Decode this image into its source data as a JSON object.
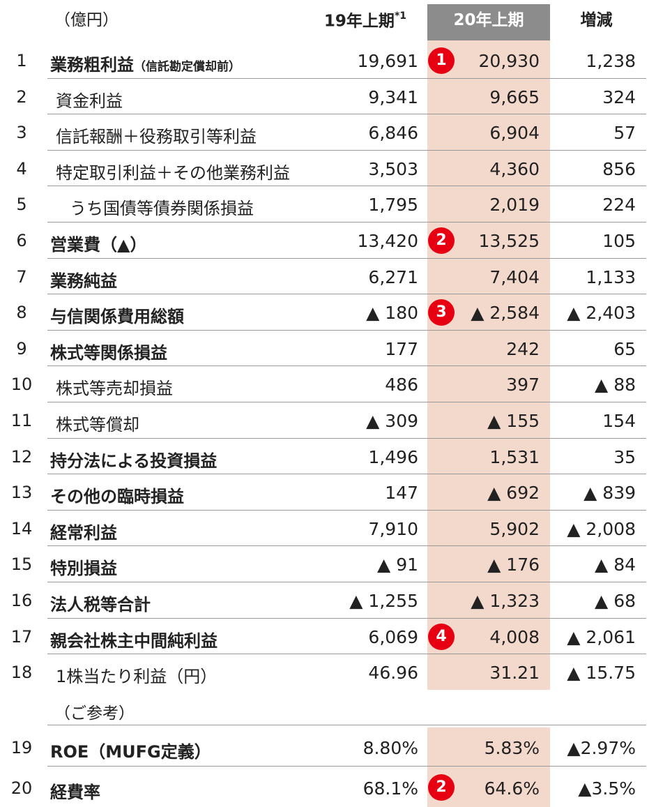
{
  "header": {
    "unit": "（億円）",
    "col1": "19年上期",
    "col1_sup": "*1",
    "col2": "20年上期",
    "col3": "増減"
  },
  "rows": [
    {
      "no": "1",
      "label": "業務粗利益",
      "sub": "（信託勘定償却前）",
      "c1": "19,691",
      "badge": "1",
      "c2": "20,930",
      "c3": "1,238"
    },
    {
      "no": "2",
      "label": "資金利益",
      "c1": "9,341",
      "c2": "9,665",
      "c3": "324"
    },
    {
      "no": "3",
      "label": "信託報酬＋役務取引等利益",
      "c1": "6,846",
      "c2": "6,904",
      "c3": "57"
    },
    {
      "no": "4",
      "label": "特定取引利益＋その他業務利益",
      "c1": "3,503",
      "c2": "4,360",
      "c3": "856"
    },
    {
      "no": "5",
      "label": "うち国債等債券関係損益",
      "c1": "1,795",
      "c2": "2,019",
      "c3": "224"
    },
    {
      "no": "6",
      "label": "営業費（▲）",
      "c1": "13,420",
      "badge": "2",
      "c2": "13,525",
      "c3": "105"
    },
    {
      "no": "7",
      "label": "業務純益",
      "c1": "6,271",
      "c2": "7,404",
      "c3": "1,133"
    },
    {
      "no": "8",
      "label": "与信関係費用総額",
      "c1": "▲ 180",
      "badge": "3",
      "c2": "▲ 2,584",
      "c3": "▲ 2,403"
    },
    {
      "no": "9",
      "label": "株式等関係損益",
      "c1": "177",
      "c2": "242",
      "c3": "65"
    },
    {
      "no": "10",
      "label": "株式等売却損益",
      "c1": "486",
      "c2": "397",
      "c3": "▲ 88"
    },
    {
      "no": "11",
      "label": "株式等償却",
      "c1": "▲ 309",
      "c2": "▲ 155",
      "c3": "154"
    },
    {
      "no": "12",
      "label": "持分法による投資損益",
      "c1": "1,496",
      "c2": "1,531",
      "c3": "35"
    },
    {
      "no": "13",
      "label": "その他の臨時損益",
      "c1": "147",
      "c2": "▲ 692",
      "c3": "▲ 839"
    },
    {
      "no": "14",
      "label": "経常利益",
      "c1": "7,910",
      "c2": "5,902",
      "c3": "▲ 2,008"
    },
    {
      "no": "15",
      "label": "特別損益",
      "c1": "▲ 91",
      "c2": "▲ 176",
      "c3": "▲ 84"
    },
    {
      "no": "16",
      "label": "法人税等合計",
      "c1": "▲ 1,255",
      "c2": "▲ 1,323",
      "c3": "▲ 68"
    },
    {
      "no": "17",
      "label": "親会社株主中間純利益",
      "c1": "6,069",
      "badge": "4",
      "c2": "4,008",
      "c3": "▲ 2,061"
    },
    {
      "no": "18",
      "label": "1株当たり利益（円）",
      "c1": "46.96",
      "c2": "31.21",
      "c3": "▲ 15.75"
    }
  ],
  "reference_label": "（ご参考）",
  "ref_rows": [
    {
      "no": "19",
      "label": "ROE（MUFG定義）",
      "c1": "8.80%",
      "c2": "5.83%",
      "c3": "▲2.97%"
    },
    {
      "no": "20",
      "label": "経費率",
      "c1": "68.1%",
      "badge": "2",
      "c2": "64.6%",
      "c3": "▲3.5%"
    }
  ]
}
